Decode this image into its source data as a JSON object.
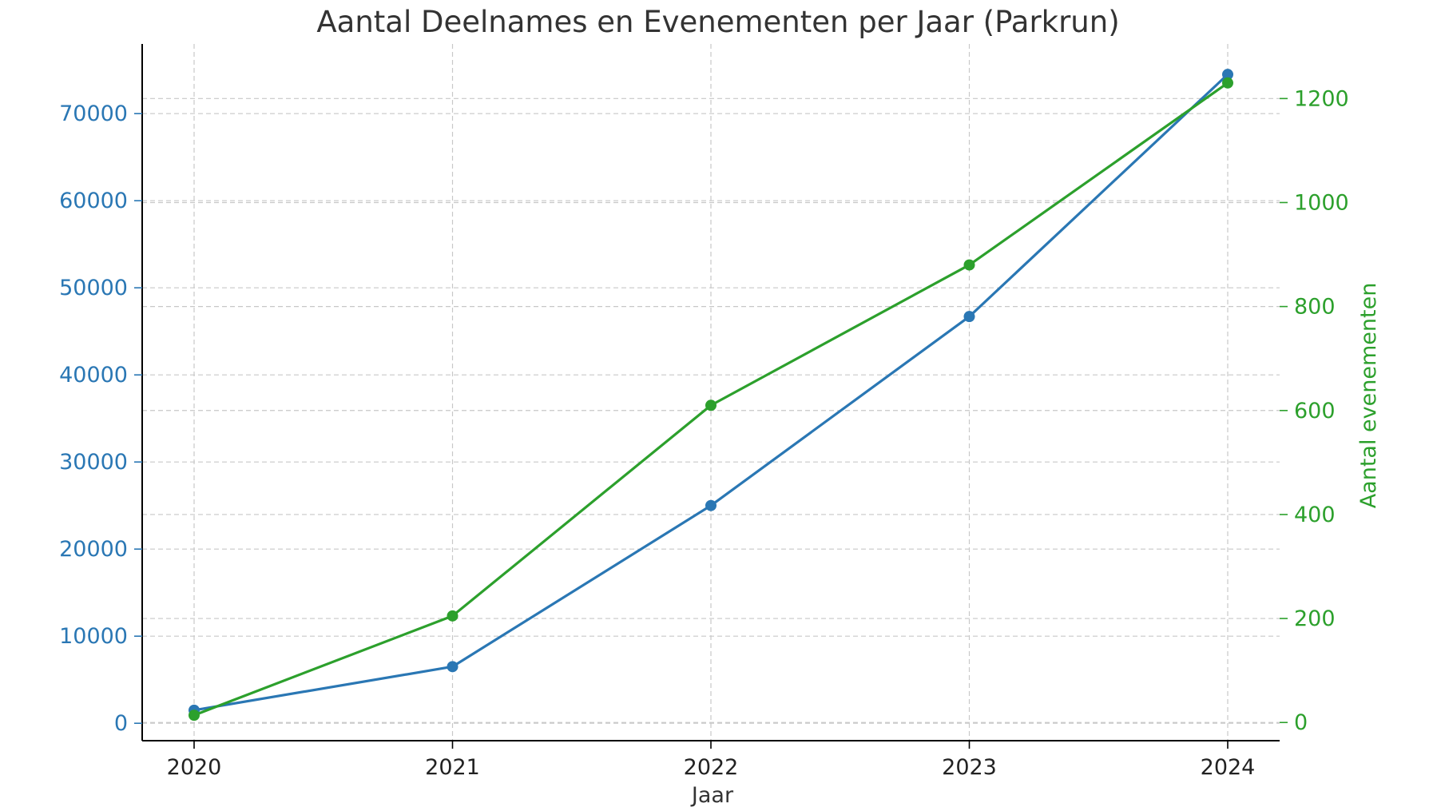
{
  "chart_data": {
    "type": "line",
    "title": "Aantal Deelnames en Evenementen per Jaar (Parkrun)",
    "xlabel": "Jaar",
    "ylabel_left": "",
    "ylabel_right": "Aantal evenementen",
    "x": [
      "2020",
      "2021",
      "2022",
      "2023",
      "2024"
    ],
    "left_axis": {
      "ylim": [
        -2000,
        78000
      ],
      "ticks": [
        "0",
        "10000",
        "20000",
        "30000",
        "40000",
        "50000",
        "60000",
        "70000"
      ],
      "tick_values": [
        0,
        10000,
        20000,
        30000,
        40000,
        50000,
        60000,
        70000
      ],
      "color": "#2a77b4"
    },
    "right_axis": {
      "ylim": [
        -35,
        1305
      ],
      "ticks": [
        "0",
        "200",
        "400",
        "600",
        "800",
        "1000",
        "1200"
      ],
      "tick_values": [
        0,
        200,
        400,
        600,
        800,
        1000,
        1200
      ],
      "color": "#2ca02c"
    },
    "series": [
      {
        "axis": "left",
        "color": "#2a77b4",
        "values": [
          1500,
          6500,
          25000,
          46700,
          74500
        ]
      },
      {
        "axis": "right",
        "color": "#2ca02c",
        "values": [
          14,
          205,
          610,
          880,
          1230
        ]
      }
    ],
    "grid": true,
    "legend": "none"
  }
}
